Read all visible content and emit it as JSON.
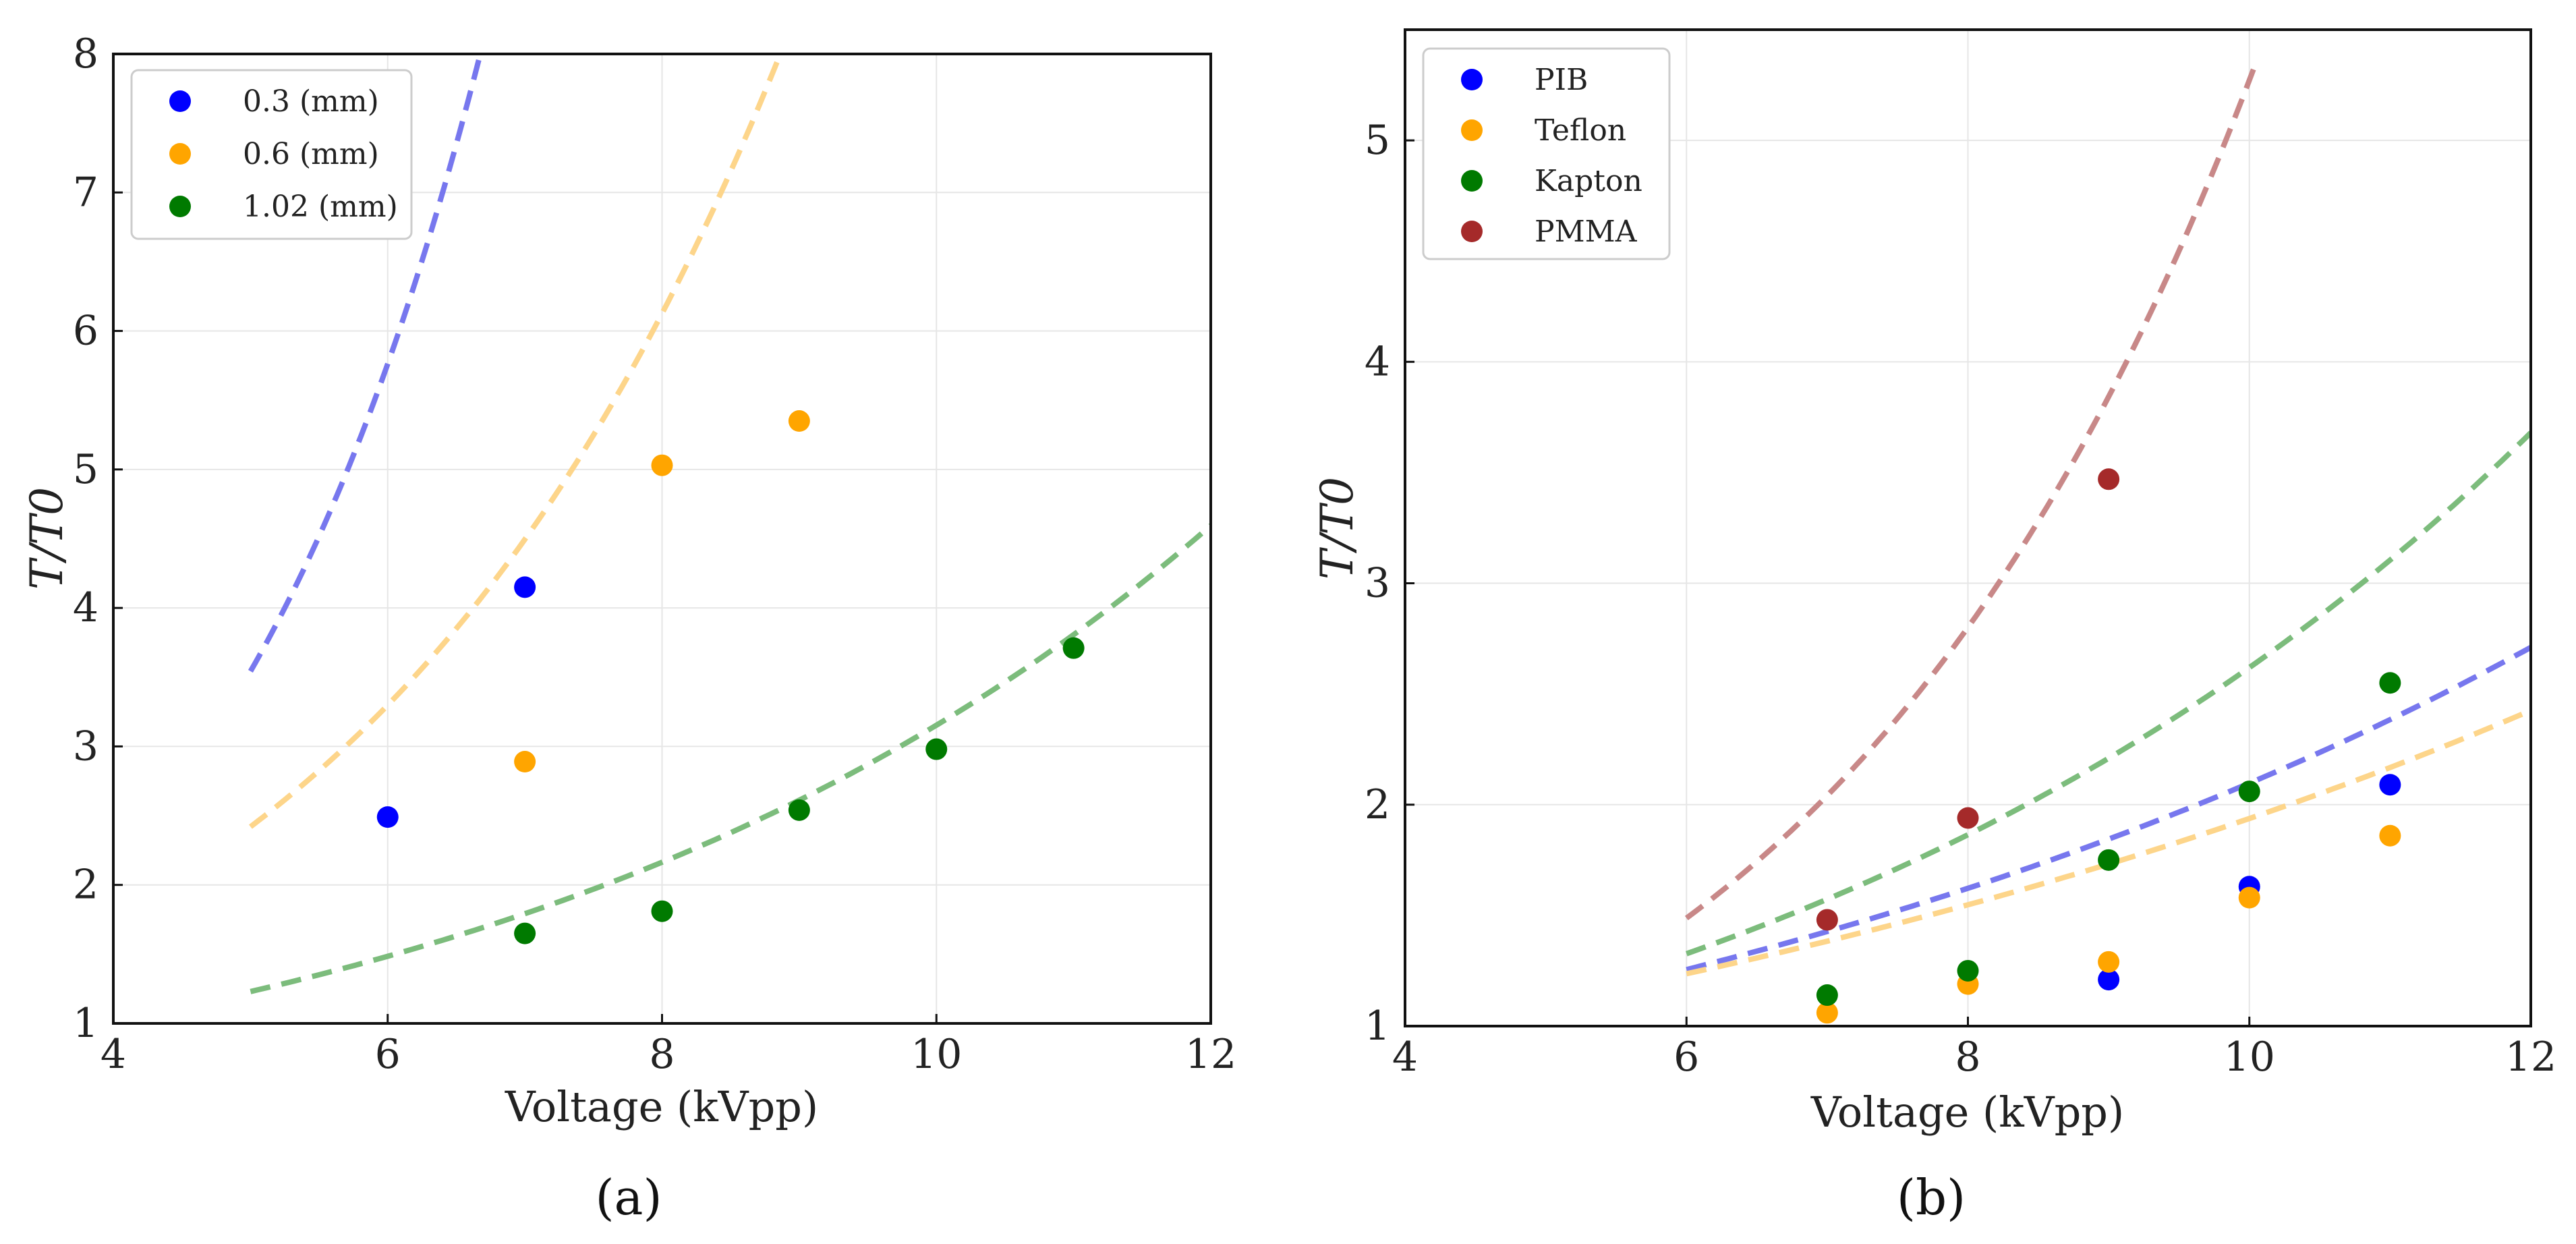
{
  "chart_data": [
    {
      "type": "scatter",
      "panel_label": "(a)",
      "xlabel": "Voltage (kVpp)",
      "ylabel": "T/T0",
      "xlim": [
        4,
        12
      ],
      "ylim": [
        1,
        8
      ],
      "xticks": [
        4,
        6,
        8,
        10,
        12
      ],
      "yticks": [
        1,
        2,
        3,
        4,
        5,
        6,
        7,
        8
      ],
      "grid": true,
      "legend_position": "top-left",
      "series": [
        {
          "name": "0.3 (mm)",
          "color": "#0000ff",
          "fit_color": "#7777ee",
          "points": [
            {
              "x": 6,
              "y": 2.49
            },
            {
              "x": 7,
              "y": 4.15
            }
          ],
          "fit": {
            "x_start": 5,
            "x_end": 8.6,
            "a": 0.3116,
            "b": 0.4862
          }
        },
        {
          "name": "0.6 (mm)",
          "color": "#ffa500",
          "fit_color": "#fdd58a",
          "points": [
            {
              "x": 7,
              "y": 2.89
            },
            {
              "x": 8,
              "y": 5.03
            },
            {
              "x": 9,
              "y": 5.35
            }
          ],
          "fit": {
            "x_start": 5,
            "x_end": 10.0,
            "a": 0.5147,
            "b": 0.3096
          }
        },
        {
          "name": "1.02 (mm)",
          "color": "#007a00",
          "fit_color": "#7cbc7c",
          "points": [
            {
              "x": 7,
              "y": 1.65
            },
            {
              "x": 8,
              "y": 1.81
            },
            {
              "x": 9,
              "y": 2.54
            },
            {
              "x": 10,
              "y": 2.98
            },
            {
              "x": 11,
              "y": 3.71
            }
          ],
          "fit": {
            "x_start": 5,
            "x_end": 12,
            "a": 0.4797,
            "b": 0.1883
          }
        }
      ]
    },
    {
      "type": "scatter",
      "panel_label": "(b)",
      "xlabel": "Voltage (kVpp)",
      "ylabel": "T/T0",
      "xlim": [
        4,
        12
      ],
      "ylim": [
        1,
        5.5
      ],
      "xticks": [
        4,
        6,
        8,
        10,
        12
      ],
      "yticks": [
        1,
        2,
        3,
        4,
        5
      ],
      "grid": true,
      "legend_position": "top-left",
      "series": [
        {
          "name": "PIB",
          "color": "#0000ff",
          "fit_color": "#7777ee",
          "points": [
            {
              "x": 9,
              "y": 1.21
            },
            {
              "x": 10,
              "y": 1.63
            },
            {
              "x": 11,
              "y": 2.09
            }
          ],
          "fit": {
            "x_start": 6,
            "x_end": 12,
            "a": 0.5813,
            "b": 0.1283
          }
        },
        {
          "name": "Teflon",
          "color": "#ffa500",
          "fit_color": "#fdd58a",
          "points": [
            {
              "x": 7,
              "y": 1.06
            },
            {
              "x": 8,
              "y": 1.19
            },
            {
              "x": 9,
              "y": 1.29
            },
            {
              "x": 10,
              "y": 1.58
            },
            {
              "x": 11,
              "y": 1.86
            }
          ],
          "fit": {
            "x_start": 6,
            "x_end": 12,
            "a": 0.6303,
            "b": 0.1123
          }
        },
        {
          "name": "Kapton",
          "color": "#007a00",
          "fit_color": "#7cbc7c",
          "points": [
            {
              "x": 7,
              "y": 1.14
            },
            {
              "x": 8,
              "y": 1.25
            },
            {
              "x": 9,
              "y": 1.75
            },
            {
              "x": 10,
              "y": 2.06
            },
            {
              "x": 11,
              "y": 2.55
            }
          ],
          "fit": {
            "x_start": 6,
            "x_end": 12,
            "a": 0.4785,
            "b": 0.17
          }
        },
        {
          "name": "PMMA",
          "color": "#a52a2a",
          "fit_color": "#c88888",
          "points": [
            {
              "x": 7,
              "y": 1.48
            },
            {
              "x": 8,
              "y": 1.94
            },
            {
              "x": 9,
              "y": 3.47
            }
          ],
          "fit": {
            "x_start": 6,
            "x_end": 10.05,
            "a": 0.223,
            "b": 0.3163
          }
        }
      ]
    }
  ]
}
